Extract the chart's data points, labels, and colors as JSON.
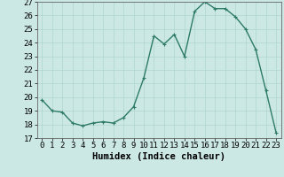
{
  "x": [
    0,
    1,
    2,
    3,
    4,
    5,
    6,
    7,
    8,
    9,
    10,
    11,
    12,
    13,
    14,
    15,
    16,
    17,
    18,
    19,
    20,
    21,
    22,
    23
  ],
  "y": [
    19.8,
    19.0,
    18.9,
    18.1,
    17.9,
    18.1,
    18.2,
    18.1,
    18.5,
    19.3,
    21.4,
    24.5,
    23.9,
    24.6,
    23.0,
    26.3,
    27.0,
    26.5,
    26.5,
    25.9,
    25.0,
    23.5,
    20.5,
    17.4
  ],
  "line_color": "#2d7a68",
  "marker": "+",
  "marker_size": 3,
  "bg_color": "#cce8e4",
  "grid_color": "#b0d4d0",
  "xlabel": "Humidex (Indice chaleur)",
  "ylim": [
    17,
    27
  ],
  "xlim_min": -0.5,
  "xlim_max": 23.5,
  "yticks": [
    17,
    18,
    19,
    20,
    21,
    22,
    23,
    24,
    25,
    26,
    27
  ],
  "xticks": [
    0,
    1,
    2,
    3,
    4,
    5,
    6,
    7,
    8,
    9,
    10,
    11,
    12,
    13,
    14,
    15,
    16,
    17,
    18,
    19,
    20,
    21,
    22,
    23
  ],
  "xlabel_fontsize": 7.5,
  "tick_fontsize": 6.5,
  "line_width": 1.0
}
